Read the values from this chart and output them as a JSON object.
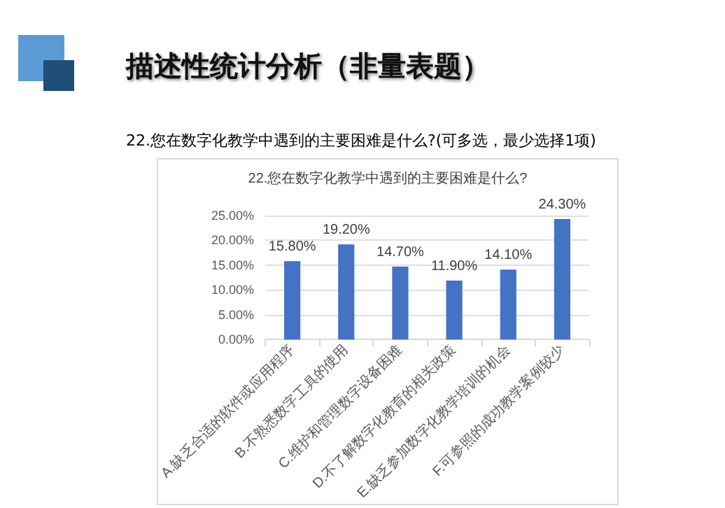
{
  "chart_data": {
    "type": "bar",
    "title": "描述性统计分析（非量表题）",
    "subtitle": "22.您在数字化教学中遇到的主要困难是什么?(可多选，最少选择1项)",
    "annotations": [
      "22.您在数字化教学中遇到的主要困难是什么?"
    ],
    "categories": [
      "A.缺乏合适的软件或应用程序",
      "B.不熟悉数字工具的使用",
      "C.维护和管理数字设备困难",
      "D.不了解数字化教育的相关政策",
      "E.缺乏参加数字化教学培训的机会",
      "F.可参照的成功教学案例较少"
    ],
    "values": [
      15.8,
      19.2,
      14.7,
      11.9,
      14.1,
      24.3
    ],
    "color": "#4472c4",
    "value_labels": [
      "15.80%",
      "19.20%",
      "14.70%",
      "11.90%",
      "14.10%",
      "24.30%"
    ],
    "ylim": [
      0,
      25
    ],
    "yticks": [
      {
        "value": 0,
        "label": "0.00%"
      },
      {
        "value": 5,
        "label": "5.00%"
      },
      {
        "value": 10,
        "label": "10.00%"
      },
      {
        "value": 15,
        "label": "15.00%"
      },
      {
        "value": 20,
        "label": "20.00%"
      },
      {
        "value": 25,
        "label": "25.00%"
      }
    ],
    "grid": "y"
  }
}
